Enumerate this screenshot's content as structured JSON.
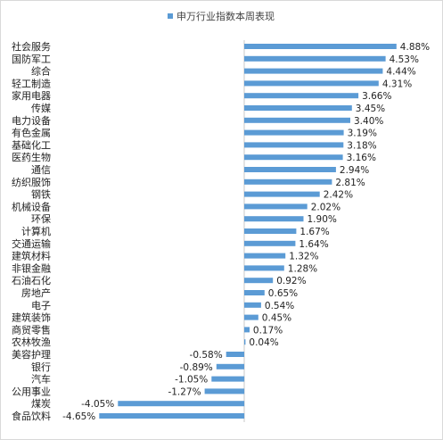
{
  "chart_data": {
    "type": "bar",
    "orientation": "horizontal",
    "legend": "top",
    "grid": false,
    "series": [
      {
        "name": "申万行业指数本周表现"
      }
    ],
    "categories": [
      "社会服务",
      "国防军工",
      "综合",
      "轻工制造",
      "家用电器",
      "传媒",
      "电力设备",
      "有色金属",
      "基础化工",
      "医药生物",
      "通信",
      "纺织服饰",
      "钢铁",
      "机械设备",
      "环保",
      "计算机",
      "交通运输",
      "建筑材料",
      "非银金融",
      "石油石化",
      "房地产",
      "电子",
      "建筑装饰",
      "商贸零售",
      "农林牧渔",
      "美容护理",
      "银行",
      "汽车",
      "公用事业",
      "煤炭",
      "食品饮料"
    ],
    "values": [
      4.88,
      4.53,
      4.44,
      4.31,
      3.66,
      3.45,
      3.4,
      3.19,
      3.18,
      3.16,
      2.94,
      2.81,
      2.42,
      2.02,
      1.9,
      1.67,
      1.64,
      1.32,
      1.28,
      0.92,
      0.65,
      0.54,
      0.45,
      0.17,
      0.04,
      -0.58,
      -0.89,
      -1.05,
      -1.27,
      -4.05,
      -4.65
    ],
    "value_labels": [
      "4.88%",
      "4.53%",
      "4.44%",
      "4.31%",
      "3.66%",
      "3.45%",
      "3.40%",
      "3.19%",
      "3.18%",
      "3.16%",
      "2.94%",
      "2.81%",
      "2.42%",
      "2.02%",
      "1.90%",
      "1.67%",
      "1.64%",
      "1.32%",
      "1.28%",
      "0.92%",
      "0.65%",
      "0.54%",
      "0.45%",
      "0.17%",
      "0.04%",
      "-0.58%",
      "-0.89%",
      "-1.05%",
      "-1.27%",
      "-4.05%",
      "-4.65%"
    ],
    "colors": {
      "bar": "#5b9bd5"
    }
  }
}
